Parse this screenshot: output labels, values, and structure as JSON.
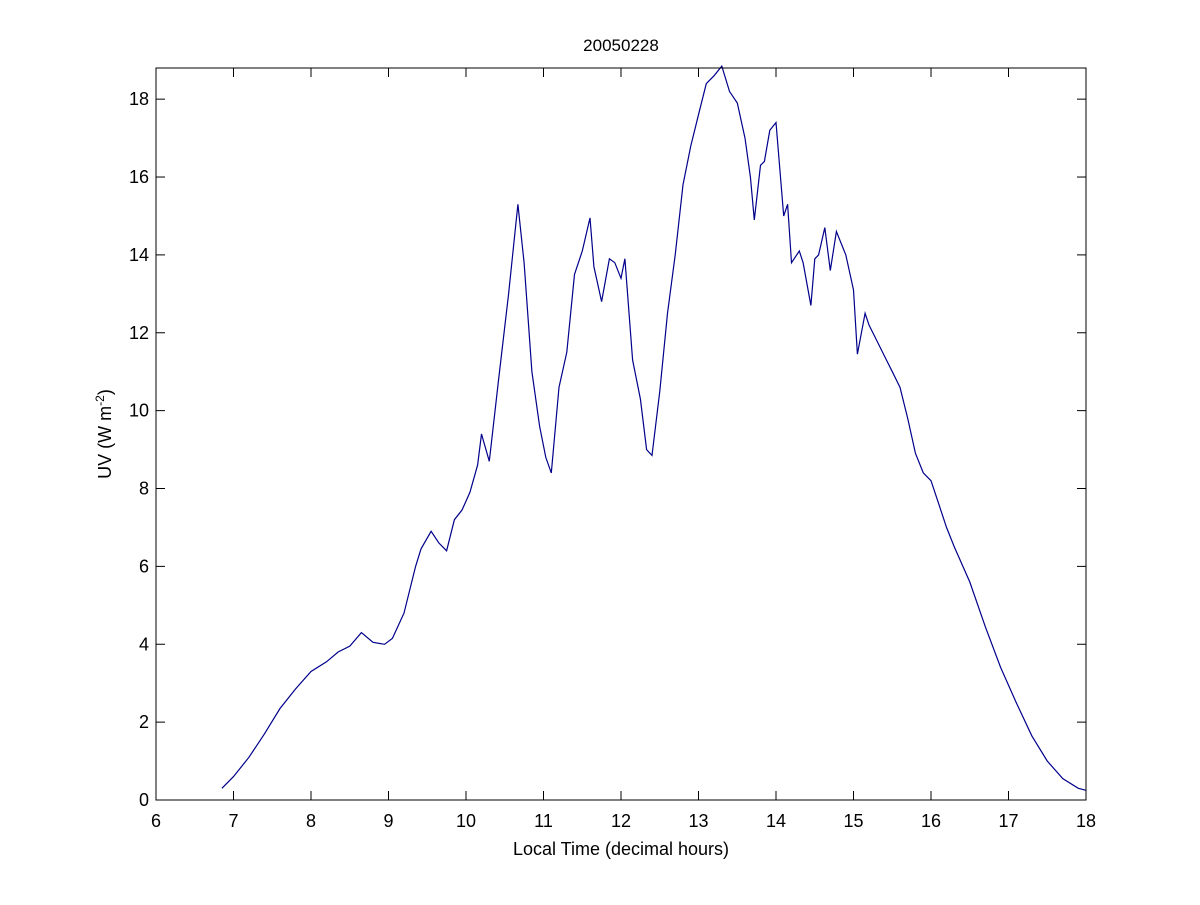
{
  "chart_data": {
    "type": "line",
    "title": "20050228",
    "xlabel": "Local Time (decimal hours)",
    "ylabel_main": "UV (W m",
    "ylabel_sup": "-2",
    "ylabel_end": ")",
    "xlim": [
      6,
      18
    ],
    "ylim": [
      0,
      18.8
    ],
    "xticks": [
      6,
      7,
      8,
      9,
      10,
      11,
      12,
      13,
      14,
      15,
      16,
      17,
      18
    ],
    "yticks": [
      0,
      2,
      4,
      6,
      8,
      10,
      12,
      14,
      16,
      18
    ],
    "grid": false,
    "line_color": "#00008b",
    "series": [
      {
        "x": [
          6.85,
          7.0,
          7.2,
          7.4,
          7.6,
          7.8,
          8.0,
          8.2,
          8.35,
          8.5,
          8.65,
          8.8,
          8.95,
          9.05,
          9.2,
          9.35,
          9.42,
          9.55,
          9.65,
          9.75,
          9.85,
          9.95,
          10.05,
          10.15,
          10.2,
          10.3,
          10.42,
          10.55,
          10.67,
          10.75,
          10.85,
          10.95,
          11.03,
          11.1,
          11.2,
          11.3,
          11.4,
          11.5,
          11.6,
          11.65,
          11.75,
          11.85,
          11.92,
          12.0,
          12.05,
          12.15,
          12.25,
          12.33,
          12.4,
          12.5,
          12.6,
          12.7,
          12.8,
          12.9,
          13.0,
          13.1,
          13.2,
          13.3,
          13.4,
          13.5,
          13.6,
          13.67,
          13.72,
          13.8,
          13.85,
          13.92,
          14.0,
          14.1,
          14.15,
          14.2,
          14.3,
          14.35,
          14.45,
          14.5,
          14.55,
          14.63,
          14.7,
          14.78,
          14.9,
          15.0,
          15.05,
          15.15,
          15.2,
          15.3,
          15.4,
          15.5,
          15.6,
          15.7,
          15.8,
          15.9,
          16.0,
          16.1,
          16.2,
          16.3,
          16.5,
          16.7,
          16.9,
          17.1,
          17.3,
          17.5,
          17.7,
          17.9,
          18.0
        ],
        "y": [
          0.3,
          0.6,
          1.1,
          1.7,
          2.35,
          2.85,
          3.3,
          3.55,
          3.8,
          3.95,
          4.3,
          4.05,
          4.0,
          4.15,
          4.8,
          6.0,
          6.45,
          6.9,
          6.6,
          6.4,
          7.2,
          7.45,
          7.9,
          8.6,
          9.4,
          8.7,
          10.8,
          13.0,
          15.3,
          13.8,
          11.0,
          9.6,
          8.8,
          8.4,
          10.6,
          11.5,
          13.5,
          14.1,
          14.95,
          13.7,
          12.8,
          13.9,
          13.8,
          13.4,
          13.9,
          11.3,
          10.3,
          9.0,
          8.85,
          10.5,
          12.5,
          14.0,
          15.8,
          16.8,
          17.6,
          18.4,
          18.6,
          18.85,
          18.2,
          17.9,
          17.0,
          16.0,
          14.9,
          16.3,
          16.4,
          17.2,
          17.4,
          15.0,
          15.3,
          13.8,
          14.1,
          13.8,
          12.7,
          13.9,
          14.0,
          14.7,
          13.6,
          14.6,
          14.0,
          13.1,
          11.45,
          12.5,
          12.2,
          11.8,
          11.4,
          11.0,
          10.6,
          9.8,
          8.9,
          8.4,
          8.2,
          7.6,
          7.0,
          6.5,
          5.6,
          4.45,
          3.4,
          2.5,
          1.65,
          1.0,
          0.55,
          0.3,
          0.25
        ]
      }
    ]
  }
}
